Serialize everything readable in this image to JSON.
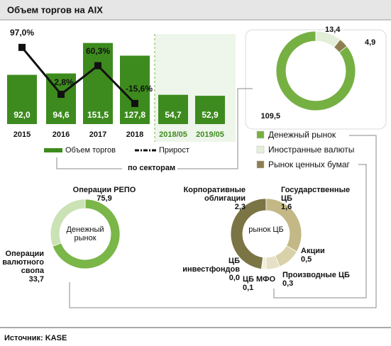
{
  "title": "Объем торгов на AIX",
  "connector_label": "по секторам",
  "source": "Источник:  KASE",
  "chart_data": [
    {
      "type": "bar",
      "categories": [
        "2015",
        "2016",
        "2017",
        "2018",
        "2018/05",
        "2019/05"
      ],
      "series": [
        {
          "name": "Объем торгов",
          "type": "bar",
          "color": "#3d8b1e",
          "values": [
            92.0,
            94.6,
            151.5,
            127.8,
            54.7,
            52.9
          ],
          "value_labels": [
            "92,0",
            "94,6",
            "151,5",
            "127,8",
            "54,7",
            "52,9"
          ]
        },
        {
          "name": "Прирост",
          "type": "line",
          "axis": "y2",
          "color": "#111111",
          "values": [
            97.0,
            2.8,
            60.3,
            -15.6,
            null,
            null
          ],
          "value_labels": [
            "97,0%",
            "2,8%",
            "60,3%",
            "-15,6%",
            null,
            null
          ]
        }
      ],
      "ylim": [
        0,
        200
      ],
      "y2lim": [
        -57,
        158
      ]
    },
    {
      "type": "donut",
      "categories": [
        "Денежный рынок",
        "Иностранные валюты",
        "Рынок ценных бумаг"
      ],
      "values": [
        109.5,
        13.4,
        4.9
      ],
      "value_labels": [
        "109,5",
        "13,4",
        "4,9"
      ],
      "colors": [
        "#76b043",
        "#e3efd9",
        "#8c7e4e"
      ]
    },
    {
      "type": "donut",
      "center_label": "Денежный рынок",
      "categories": [
        "Операции РЕПО",
        "Операции валютного свопа"
      ],
      "values": [
        75.9,
        33.7
      ],
      "value_labels": [
        "75,9",
        "33,7"
      ],
      "colors": [
        "#7ab648",
        "#cbe2b5"
      ]
    },
    {
      "type": "donut",
      "center_label": "рынок ЦБ",
      "categories": [
        "Корпоративные облигации",
        "Государственные ЦБ",
        "Акции",
        "Производные ЦБ",
        "ЦБ МФО",
        "ЦБ инвестфондов"
      ],
      "values": [
        2.3,
        1.6,
        0.5,
        0.3,
        0.1,
        0.0
      ],
      "value_labels": [
        "2,3",
        "1,6",
        "0,5",
        "0,3",
        "0,1",
        "0,0"
      ],
      "colors": [
        "#7b7444",
        "#c3b886",
        "#d9d1aa",
        "#e6e0c6",
        "#f1eddb",
        "#ffffff"
      ]
    }
  ]
}
